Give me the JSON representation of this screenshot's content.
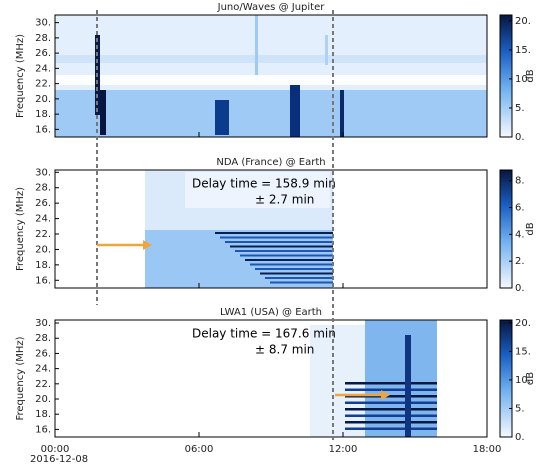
{
  "chart_data": [
    {
      "type": "heatmap",
      "title": "Juno/Waves @ Jupiter",
      "ylabel": "Frequency (MHz)",
      "ylim": [
        15,
        31
      ],
      "yticks": [
        {
          "value": 16,
          "label": "16."
        },
        {
          "value": 18,
          "label": "18."
        },
        {
          "value": 20,
          "label": "20."
        },
        {
          "value": 22,
          "label": "22."
        },
        {
          "value": 24,
          "label": "24."
        },
        {
          "value": 26,
          "label": "26."
        },
        {
          "value": 28,
          "label": "28."
        },
        {
          "value": 30,
          "label": "30."
        }
      ],
      "colorbar": {
        "label": "dB",
        "lim": [
          0,
          21
        ],
        "ticks": [
          {
            "value": 0,
            "label": "0."
          },
          {
            "value": 5,
            "label": "5."
          },
          {
            "value": 10,
            "label": "10."
          },
          {
            "value": 15,
            "label": "15."
          },
          {
            "value": 20,
            "label": "20."
          }
        ]
      }
    },
    {
      "type": "heatmap",
      "title": "NDA (France) @ Earth",
      "ylabel": "Frequency (MHz)",
      "ylim": [
        15,
        30.3
      ],
      "yticks": [
        {
          "value": 16,
          "label": "16."
        },
        {
          "value": 18,
          "label": "18."
        },
        {
          "value": 20,
          "label": "20."
        },
        {
          "value": 22,
          "label": "22."
        },
        {
          "value": 24,
          "label": "24."
        },
        {
          "value": 26,
          "label": "26."
        },
        {
          "value": 28,
          "label": "28."
        },
        {
          "value": 30,
          "label": "30."
        }
      ],
      "colorbar": {
        "label": "dB",
        "lim": [
          0,
          8.8
        ],
        "ticks": [
          {
            "value": 0,
            "label": "0."
          },
          {
            "value": 2,
            "label": "2."
          },
          {
            "value": 4,
            "label": "4."
          },
          {
            "value": 6,
            "label": "6."
          },
          {
            "value": 8,
            "label": "8."
          }
        ]
      },
      "annotations": [
        "Delay time = 158.9 min",
        "± 2.7 min"
      ]
    },
    {
      "type": "heatmap",
      "title": "LWA1 (USA) @ Earth",
      "ylabel": "Frequency (MHz)",
      "ylim": [
        15,
        30.4
      ],
      "yticks": [
        {
          "value": 16,
          "label": "16."
        },
        {
          "value": 18,
          "label": "18."
        },
        {
          "value": 20,
          "label": "20."
        },
        {
          "value": 22,
          "label": "22."
        },
        {
          "value": 24,
          "label": "24."
        },
        {
          "value": 26,
          "label": "26."
        },
        {
          "value": 28,
          "label": "28."
        },
        {
          "value": 30,
          "label": "30."
        }
      ],
      "colorbar": {
        "label": "dB",
        "lim": [
          0,
          20.5
        ],
        "ticks": [
          {
            "value": 0,
            "label": "0."
          },
          {
            "value": 5,
            "label": "5."
          },
          {
            "value": 10,
            "label": "10."
          },
          {
            "value": 15,
            "label": "15."
          },
          {
            "value": 20,
            "label": "20."
          }
        ]
      },
      "annotations": [
        "Delay time = 167.6 min",
        "± 8.7 min"
      ],
      "xlim": [
        0,
        18
      ],
      "xticks": [
        {
          "value": 0,
          "label": "00:00"
        },
        {
          "value": 6,
          "label": "06:00"
        },
        {
          "value": 12,
          "label": "12:00"
        },
        {
          "value": 18,
          "label": "18:00"
        }
      ],
      "date_label": "2016-12-08"
    }
  ]
}
